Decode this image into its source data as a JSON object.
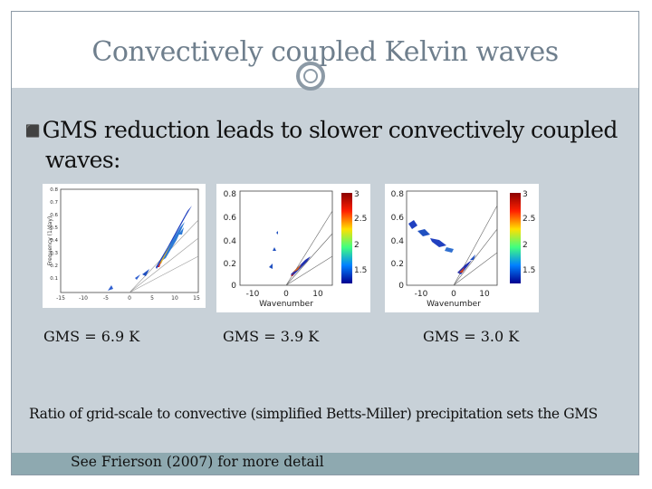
{
  "slide": {
    "title": "Convectively coupled Kelvin waves",
    "bullet": "GMS reduction leads to slower convectively coupled waves:",
    "bullet_line1": "GMS reduction leads to slower convectively coupled",
    "bullet_line2": "waves:",
    "note": "Ratio of grid-scale to convective (simplified Betts-Miller) precipitation sets the GMS",
    "footer_note": "See Frierson (2007) for more detail",
    "colors": {
      "title": "#6f7f8d",
      "content_bg": "#c8d1d8",
      "footer_bar": "#8ea9b0",
      "accent": "#5c7a87"
    }
  },
  "plots": [
    {
      "caption": "GMS = 6.9 K",
      "ylabel": "Frequency (1/day)",
      "xlabel": "",
      "xticks": [
        "-15",
        "-10",
        "-5",
        "0",
        "5",
        "10",
        "15"
      ],
      "yticks": [
        "0.1",
        "0.2",
        "0.3",
        "0.4",
        "0.5",
        "0.6",
        "0.7",
        "0.8"
      ]
    },
    {
      "caption": "GMS = 3.9 K",
      "xlabel": "Wavenumber",
      "xticks": [
        "-10",
        "0",
        "10"
      ],
      "yticks": [
        "0",
        "0.2",
        "0.4",
        "0.6",
        "0.8"
      ],
      "colorbar_ticks": [
        "3",
        "2.5",
        "2",
        "1.5"
      ]
    },
    {
      "caption": "GMS = 3.0 K",
      "xlabel": "Wavenumber",
      "xticks": [
        "-10",
        "0",
        "10"
      ],
      "yticks": [
        "0",
        "0.2",
        "0.4",
        "0.6",
        "0.8"
      ],
      "colorbar_ticks": [
        "3",
        "2.5",
        "2",
        "1.5"
      ]
    }
  ]
}
